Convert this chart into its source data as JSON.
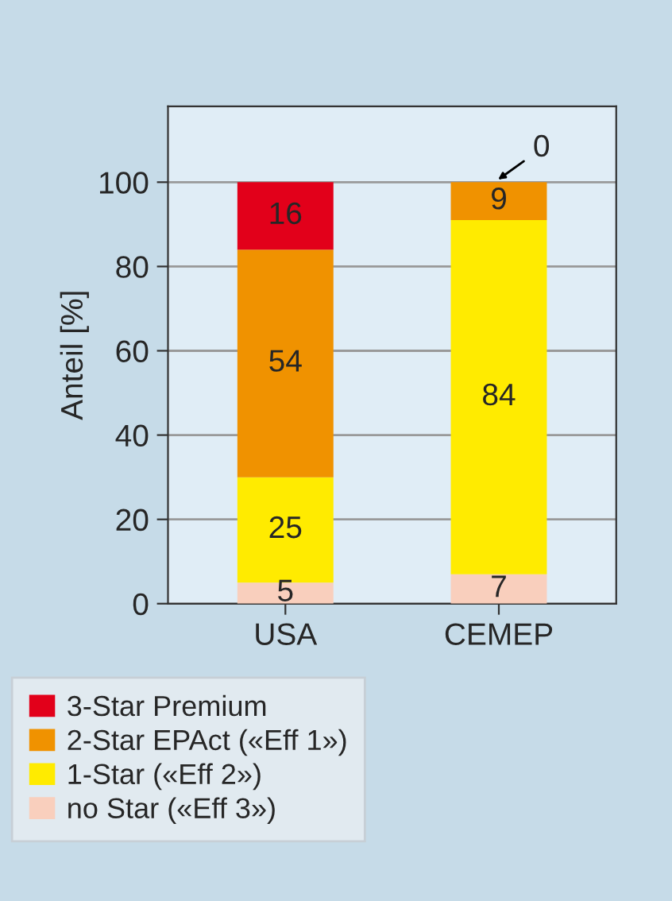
{
  "chart_data": {
    "type": "bar",
    "stacked": true,
    "categories": [
      "USA",
      "CEMEP"
    ],
    "ylabel": "Anteil [%]",
    "series": [
      {
        "name": "no Star («Eff 3»)",
        "color": "#f9cfbd",
        "values": [
          5,
          7
        ]
      },
      {
        "name": "1-Star («Eff 2»)",
        "color": "#ffeb00",
        "values": [
          25,
          84
        ]
      },
      {
        "name": "2-Star EPAct («Eff 1»)",
        "color": "#f09200",
        "values": [
          54,
          9
        ]
      },
      {
        "name": "3-Star Premium",
        "color": "#e2001a",
        "values": [
          16,
          0
        ]
      }
    ],
    "ylim": [
      0,
      118
    ],
    "yticks": [
      0,
      20,
      40,
      60,
      80,
      100
    ],
    "grid": "y",
    "legend": "bottom",
    "data_labels": true
  }
}
